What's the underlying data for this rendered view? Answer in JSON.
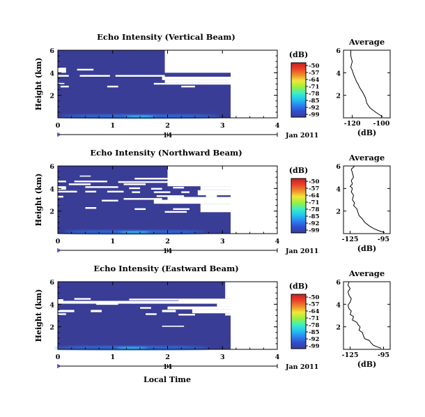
{
  "figure": {
    "shared_x_label": "Local Time",
    "date_label": "Jan 2011",
    "day_label": "14",
    "colorbar_unit": "(dB)",
    "colorbar_ticks": [
      "-50",
      "-57",
      "-64",
      "-71",
      "-78",
      "-85",
      "-92",
      "-99"
    ],
    "colorbar_colors": [
      "#3a3d96",
      "#2f4fd0",
      "#2a86f0",
      "#22c8f0",
      "#3ff0c0",
      "#9af03c",
      "#f0e83a",
      "#f08a2a",
      "#e8402a",
      "#c82020"
    ],
    "background_color": "#3a3d96",
    "gap_color": "#ffffff"
  },
  "chart_data": [
    {
      "type": "heatmap",
      "title": "Echo Intensity (Vertical Beam)",
      "xlabel": "",
      "ylabel": "Height (km)",
      "xlim": [
        0,
        4
      ],
      "ylim": [
        0,
        6
      ],
      "x_ticks": [
        "0",
        "1",
        "2",
        "3",
        "4"
      ],
      "y_ticks": [
        "2",
        "4",
        "6"
      ],
      "data_end_x": 3.15,
      "gaps": [
        {
          "x": [
            1.95,
            4.0
          ],
          "y": [
            4.0,
            6.0
          ]
        },
        {
          "x": [
            0.0,
            0.15
          ],
          "y": [
            4.0,
            4.45
          ]
        },
        {
          "x": [
            0.35,
            0.65
          ],
          "y": [
            4.2,
            4.35
          ]
        },
        {
          "x": [
            0.0,
            0.2
          ],
          "y": [
            3.65,
            3.8
          ]
        },
        {
          "x": [
            0.45,
            0.95
          ],
          "y": [
            3.65,
            3.8
          ]
        },
        {
          "x": [
            1.05,
            1.95
          ],
          "y": [
            3.65,
            3.8
          ]
        },
        {
          "x": [
            0.4,
            0.75
          ],
          "y": [
            3.65,
            3.8
          ]
        },
        {
          "x": [
            1.9,
            4.0
          ],
          "y": [
            3.35,
            3.65
          ]
        },
        {
          "x": [
            1.95,
            4.0
          ],
          "y": [
            3.1,
            3.35
          ]
        },
        {
          "x": [
            1.75,
            4.0
          ],
          "y": [
            2.95,
            3.1
          ]
        },
        {
          "x": [
            0.0,
            0.12
          ],
          "y": [
            3.0,
            3.1
          ]
        },
        {
          "x": [
            0.05,
            0.2
          ],
          "y": [
            2.7,
            2.85
          ]
        },
        {
          "x": [
            0.9,
            1.1
          ],
          "y": [
            2.7,
            2.85
          ]
        },
        {
          "x": [
            2.25,
            2.5
          ],
          "y": [
            2.7,
            2.85
          ]
        },
        {
          "x": [
            3.15,
            4.0
          ],
          "y": [
            0.0,
            2.95
          ]
        }
      ],
      "bottom_glow": {
        "x": [
          0.1,
          3.0
        ],
        "peak_x": 1.5
      },
      "profile": {
        "title": "Average",
        "xlabel": "(dB)",
        "x_ticks": [
          "-120",
          "-100"
        ],
        "xlim": [
          -126,
          -94
        ],
        "ylim": [
          0,
          6
        ],
        "y_ticks": [
          "2",
          "4",
          "6"
        ],
        "points": [
          [
            -121,
            6.0
          ],
          [
            -121,
            5.5
          ],
          [
            -120,
            5.0
          ],
          [
            -121,
            4.5
          ],
          [
            -120,
            4.2
          ],
          [
            -119,
            3.8
          ],
          [
            -118,
            3.5
          ],
          [
            -117,
            3.2
          ],
          [
            -116,
            3.0
          ],
          [
            -115,
            2.7
          ],
          [
            -113,
            2.3
          ],
          [
            -111,
            1.8
          ],
          [
            -110,
            1.3
          ],
          [
            -108,
            0.9
          ],
          [
            -104,
            0.5
          ],
          [
            -101,
            0.25
          ],
          [
            -99,
            0.1
          ]
        ]
      }
    },
    {
      "type": "heatmap",
      "title": "Echo Intensity (Northward Beam)",
      "xlabel": "",
      "ylabel": "Height (km)",
      "xlim": [
        0,
        4
      ],
      "ylim": [
        0,
        6
      ],
      "x_ticks": [
        "0",
        "1",
        "2",
        "3",
        "4"
      ],
      "y_ticks": [
        "2",
        "4",
        "6"
      ],
      "data_end_x": 3.15,
      "gaps": [
        {
          "x": [
            2.0,
            4.0
          ],
          "y": [
            4.2,
            6.0
          ]
        },
        {
          "x": [
            0.4,
            0.6
          ],
          "y": [
            5.05,
            5.15
          ]
        },
        {
          "x": [
            1.4,
            2.0
          ],
          "y": [
            4.8,
            4.95
          ]
        },
        {
          "x": [
            0.0,
            0.15
          ],
          "y": [
            4.55,
            4.7
          ]
        },
        {
          "x": [
            0.3,
            0.9
          ],
          "y": [
            4.55,
            4.7
          ]
        },
        {
          "x": [
            1.1,
            2.0
          ],
          "y": [
            4.5,
            4.65
          ]
        },
        {
          "x": [
            0.2,
            0.6
          ],
          "y": [
            4.3,
            4.45
          ]
        },
        {
          "x": [
            1.2,
            1.6
          ],
          "y": [
            4.3,
            4.45
          ]
        },
        {
          "x": [
            0.0,
            0.15
          ],
          "y": [
            3.9,
            4.2
          ]
        },
        {
          "x": [
            0.5,
            1.1
          ],
          "y": [
            4.05,
            4.2
          ]
        },
        {
          "x": [
            1.3,
            1.5
          ],
          "y": [
            3.95,
            4.1
          ]
        },
        {
          "x": [
            1.7,
            1.9
          ],
          "y": [
            3.9,
            4.05
          ]
        },
        {
          "x": [
            2.1,
            2.3
          ],
          "y": [
            4.0,
            4.15
          ]
        },
        {
          "x": [
            2.6,
            4.0
          ],
          "y": [
            3.85,
            4.2
          ]
        },
        {
          "x": [
            0.0,
            0.35
          ],
          "y": [
            3.65,
            3.8
          ]
        },
        {
          "x": [
            0.5,
            0.7
          ],
          "y": [
            3.65,
            3.8
          ]
        },
        {
          "x": [
            0.9,
            1.2
          ],
          "y": [
            3.65,
            3.8
          ]
        },
        {
          "x": [
            1.35,
            1.5
          ],
          "y": [
            3.6,
            3.75
          ]
        },
        {
          "x": [
            1.75,
            2.05
          ],
          "y": [
            3.6,
            3.75
          ]
        },
        {
          "x": [
            2.25,
            2.4
          ],
          "y": [
            3.6,
            3.75
          ]
        },
        {
          "x": [
            2.55,
            4.0
          ],
          "y": [
            3.4,
            3.85
          ]
        },
        {
          "x": [
            1.8,
            2.3
          ],
          "y": [
            3.25,
            3.4
          ]
        },
        {
          "x": [
            2.7,
            2.9
          ],
          "y": [
            3.25,
            3.4
          ]
        },
        {
          "x": [
            0.0,
            0.1
          ],
          "y": [
            3.2,
            3.35
          ]
        },
        {
          "x": [
            2.0,
            4.0
          ],
          "y": [
            3.0,
            3.25
          ]
        },
        {
          "x": [
            0.8,
            1.1
          ],
          "y": [
            2.85,
            3.0
          ]
        },
        {
          "x": [
            1.2,
            1.9
          ],
          "y": [
            3.0,
            3.15
          ]
        },
        {
          "x": [
            1.75,
            4.0
          ],
          "y": [
            2.65,
            3.0
          ]
        },
        {
          "x": [
            0.5,
            0.7
          ],
          "y": [
            2.2,
            2.35
          ]
        },
        {
          "x": [
            2.6,
            2.9
          ],
          "y": [
            2.3,
            2.45
          ]
        },
        {
          "x": [
            1.4,
            1.6
          ],
          "y": [
            2.1,
            2.25
          ]
        },
        {
          "x": [
            2.1,
            2.4
          ],
          "y": [
            2.1,
            2.25
          ]
        },
        {
          "x": [
            2.6,
            4.0
          ],
          "y": [
            1.9,
            2.65
          ]
        },
        {
          "x": [
            1.95,
            2.35
          ],
          "y": [
            1.85,
            2.0
          ]
        },
        {
          "x": [
            3.15,
            4.0
          ],
          "y": [
            0.0,
            1.9
          ]
        }
      ],
      "bottom_glow": {
        "x": [
          0.3,
          2.9
        ],
        "peak_x": 1.4
      },
      "profile": {
        "title": "Average",
        "xlabel": "(dB)",
        "x_ticks": [
          "-125",
          "-95"
        ],
        "xlim": [
          -131,
          -89
        ],
        "ylim": [
          0,
          6
        ],
        "y_ticks": [
          "2",
          "4",
          "6"
        ],
        "points": [
          [
            -121,
            6.0
          ],
          [
            -124,
            5.7
          ],
          [
            -123,
            5.4
          ],
          [
            -122,
            5.0
          ],
          [
            -124,
            4.7
          ],
          [
            -123,
            4.4
          ],
          [
            -125,
            4.2
          ],
          [
            -123,
            4.0
          ],
          [
            -124,
            3.7
          ],
          [
            -122,
            3.4
          ],
          [
            -123,
            3.0
          ],
          [
            -121,
            2.7
          ],
          [
            -122,
            2.5
          ],
          [
            -119,
            2.2
          ],
          [
            -118,
            1.9
          ],
          [
            -117,
            1.6
          ],
          [
            -114,
            1.3
          ],
          [
            -112,
            1.0
          ],
          [
            -108,
            0.7
          ],
          [
            -104,
            0.45
          ],
          [
            -99,
            0.25
          ],
          [
            -94,
            0.1
          ]
        ]
      }
    },
    {
      "type": "heatmap",
      "title": "Echo Intensity (Eastward Beam)",
      "xlabel": "Local Time",
      "ylabel": "Height (km)",
      "xlim": [
        0,
        4
      ],
      "ylim": [
        0,
        6
      ],
      "x_ticks": [
        "0",
        "1",
        "2",
        "3",
        "4"
      ],
      "y_ticks": [
        "2",
        "4",
        "6"
      ],
      "data_end_x": 3.15,
      "gaps": [
        {
          "x": [
            3.05,
            4.0
          ],
          "y": [
            4.5,
            6.0
          ]
        },
        {
          "x": [
            0.0,
            0.1
          ],
          "y": [
            4.3,
            4.45
          ]
        },
        {
          "x": [
            0.3,
            0.6
          ],
          "y": [
            4.4,
            4.55
          ]
        },
        {
          "x": [
            1.3,
            2.2
          ],
          "y": [
            4.35,
            4.5
          ]
        },
        {
          "x": [
            2.2,
            4.0
          ],
          "y": [
            4.3,
            4.5
          ]
        },
        {
          "x": [
            0.0,
            4.0
          ],
          "y": [
            4.05,
            4.3
          ]
        },
        {
          "x": [
            0.7,
            1.1
          ],
          "y": [
            3.95,
            4.05
          ]
        },
        {
          "x": [
            2.9,
            4.0
          ],
          "y": [
            3.8,
            4.05
          ]
        },
        {
          "x": [
            1.5,
            1.7
          ],
          "y": [
            3.6,
            3.75
          ]
        },
        {
          "x": [
            2.0,
            4.0
          ],
          "y": [
            3.55,
            3.8
          ]
        },
        {
          "x": [
            0.0,
            0.3
          ],
          "y": [
            3.3,
            3.5
          ]
        },
        {
          "x": [
            0.6,
            0.8
          ],
          "y": [
            3.3,
            3.5
          ]
        },
        {
          "x": [
            1.9,
            2.15
          ],
          "y": [
            3.3,
            3.5
          ]
        },
        {
          "x": [
            2.45,
            4.0
          ],
          "y": [
            3.2,
            3.55
          ]
        },
        {
          "x": [
            0.0,
            0.15
          ],
          "y": [
            3.05,
            3.2
          ]
        },
        {
          "x": [
            1.6,
            1.8
          ],
          "y": [
            3.05,
            3.2
          ]
        },
        {
          "x": [
            2.2,
            2.5
          ],
          "y": [
            3.0,
            3.15
          ]
        },
        {
          "x": [
            3.05,
            4.0
          ],
          "y": [
            3.0,
            3.2
          ]
        },
        {
          "x": [
            1.9,
            2.3
          ],
          "y": [
            2.0,
            2.1
          ]
        },
        {
          "x": [
            3.15,
            4.0
          ],
          "y": [
            0.0,
            3.0
          ]
        }
      ],
      "bottom_glow": {
        "x": [
          0.2,
          3.0
        ],
        "peak_x": 1.35
      },
      "profile": {
        "title": "Average",
        "xlabel": "(dB)",
        "x_ticks": [
          "-125",
          "-95"
        ],
        "xlim": [
          -131,
          -89
        ],
        "ylim": [
          0,
          6
        ],
        "y_ticks": [
          "2",
          "4",
          "6"
        ],
        "points": [
          [
            -126,
            6.0
          ],
          [
            -127,
            5.7
          ],
          [
            -125,
            5.4
          ],
          [
            -127,
            5.1
          ],
          [
            -126,
            4.8
          ],
          [
            -124,
            4.5
          ],
          [
            -125,
            4.2
          ],
          [
            -127,
            3.9
          ],
          [
            -126,
            3.6
          ],
          [
            -124,
            3.4
          ],
          [
            -125,
            3.1
          ],
          [
            -122,
            2.9
          ],
          [
            -123,
            2.6
          ],
          [
            -119,
            2.4
          ],
          [
            -118,
            2.2
          ],
          [
            -116,
            2.0
          ],
          [
            -117,
            1.7
          ],
          [
            -114,
            1.5
          ],
          [
            -113,
            1.2
          ],
          [
            -112,
            0.95
          ],
          [
            -108,
            0.8
          ],
          [
            -106,
            0.55
          ],
          [
            -104,
            0.35
          ],
          [
            -100,
            0.2
          ],
          [
            -97,
            0.1
          ]
        ]
      }
    }
  ]
}
